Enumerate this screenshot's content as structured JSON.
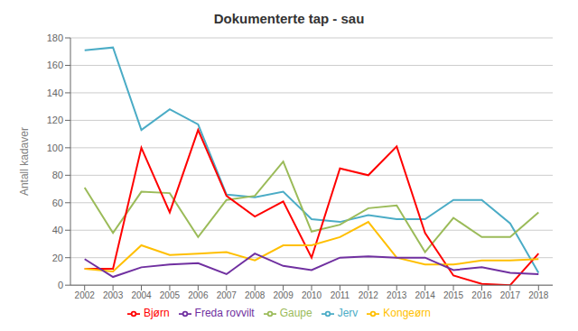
{
  "chart_data": {
    "type": "line",
    "title": "Dokumenterte tap - sau",
    "ylabel": "Antall kadaver",
    "x": [
      2002,
      2003,
      2004,
      2005,
      2006,
      2007,
      2008,
      2009,
      2010,
      2011,
      2012,
      2013,
      2014,
      2015,
      2016,
      2017,
      2018
    ],
    "series": [
      {
        "name": "Jerv",
        "color": "#4BACC6",
        "values": [
          171,
          173,
          113,
          128,
          117,
          66,
          64,
          68,
          48,
          46,
          51,
          48,
          48,
          62,
          62,
          45,
          9
        ]
      },
      {
        "name": "Gaupe",
        "color": "#9BBB59",
        "values": [
          71,
          38,
          68,
          67,
          35,
          62,
          65,
          90,
          39,
          44,
          56,
          58,
          24,
          49,
          35,
          35,
          53
        ]
      },
      {
        "name": "Bjørn",
        "color": "#FF0000",
        "values": [
          12,
          12,
          100,
          53,
          113,
          65,
          50,
          61,
          20,
          85,
          80,
          101,
          38,
          7,
          1,
          0,
          23
        ]
      },
      {
        "name": "Kongeørn",
        "color": "#FFBF00",
        "values": [
          12,
          10,
          29,
          22,
          23,
          24,
          18,
          29,
          29,
          35,
          46,
          20,
          15,
          15,
          18,
          18,
          19
        ]
      },
      {
        "name": "Freda rovvilt",
        "color": "#7030A0",
        "values": [
          19,
          6,
          13,
          15,
          16,
          8,
          23,
          14,
          11,
          20,
          21,
          20,
          20,
          11,
          13,
          9,
          8
        ]
      }
    ],
    "xlim": [
      2001.5,
      2018.5
    ],
    "xticks": [
      2002,
      2003,
      2004,
      2005,
      2006,
      2007,
      2008,
      2009,
      2010,
      2011,
      2012,
      2013,
      2014,
      2015,
      2016,
      2017,
      2018
    ],
    "ylim": [
      0,
      180
    ],
    "yticks": [
      0,
      20,
      40,
      60,
      80,
      100,
      120,
      140,
      160,
      180
    ],
    "grid": true,
    "legend": "bottom"
  }
}
